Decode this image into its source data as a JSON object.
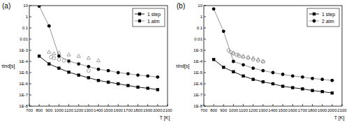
{
  "chart_data": [
    {
      "type": "scatter",
      "title": "(a)",
      "x_label": "T [K]",
      "y_label": "τind[s]",
      "log": "y",
      "grid": false,
      "legend": "upper-right",
      "xlim": [
        700,
        2100
      ],
      "xticks": [
        700,
        800,
        900,
        1000,
        1100,
        1200,
        1300,
        1400,
        1500,
        1600,
        1700,
        1800,
        1900,
        2000,
        2100
      ],
      "ylim": [
        1e-08,
        10
      ],
      "yticks": [
        10,
        1,
        0.1,
        0.01,
        {
          "value": 0.001,
          "label": "1E-3"
        },
        {
          "value": 0.0001,
          "label": "1E-4"
        },
        {
          "value": 1e-05,
          "label": "1E-5"
        },
        {
          "value": 1e-06,
          "label": "1E-6"
        },
        {
          "value": 1e-07,
          "label": "1E-7"
        },
        {
          "value": 1e-08,
          "label": "1E-8"
        }
      ],
      "series": [
        {
          "name": "1 step",
          "color": "#000000",
          "marker": "square",
          "line_style": "solid",
          "x": [
            800,
            900,
            1000,
            1100,
            1200,
            1300,
            1400,
            1500,
            1600,
            1700,
            1800,
            1900,
            2000
          ],
          "values": [
            0.0003,
            6e-05,
            2.5e-05,
            1.1e-05,
            6e-06,
            3.5e-06,
            2e-06,
            1.4e-06,
            1e-06,
            7e-07,
            5e-07,
            4e-07,
            3e-07
          ]
        },
        {
          "name": "1 atm",
          "color": "#888888",
          "marker": "circle",
          "line_style": "solid",
          "x": [
            800,
            900,
            1000,
            1100,
            1200,
            1300,
            1400,
            1500,
            1600,
            1700,
            1800,
            1900,
            2000
          ],
          "values": [
            9,
            0.15,
            0.0003,
            0.00011,
            6e-05,
            3.5e-05,
            2e-05,
            1.5e-05,
            1e-05,
            8e-06,
            6e-06,
            5e-06,
            4e-06
          ]
        },
        {
          "color": "#888888",
          "marker": "open-triangle",
          "line_style": "none",
          "x": [
            900,
            950,
            1000,
            1100,
            1200,
            1300,
            1400
          ],
          "values": [
            0.0007,
            0.0005,
            0.0006,
            0.0004,
            0.0003,
            0.0002,
            0.00012
          ]
        },
        {
          "color": "#888888",
          "marker": "open-circle",
          "line_style": "none",
          "x": [
            920,
            950,
            1000,
            1050,
            1100,
            1200,
            1300
          ],
          "values": [
            0.00025,
            0.0002,
            0.00015,
            0.00012,
            0.0001,
            6e-05,
            1.5e-05
          ]
        }
      ]
    },
    {
      "type": "scatter",
      "title": "(b)",
      "x_label": "T [K]",
      "y_label": "τind[s]",
      "log": "y",
      "grid": false,
      "legend": "upper-right",
      "xlim": [
        700,
        2100
      ],
      "xticks": [
        700,
        800,
        900,
        1000,
        1100,
        1200,
        1300,
        1400,
        1500,
        1600,
        1700,
        1800,
        1900,
        2000,
        2100
      ],
      "ylim": [
        1e-08,
        10
      ],
      "yticks": [
        10,
        1,
        0.1,
        0.01,
        {
          "value": 0.001,
          "label": "1E-3"
        },
        {
          "value": 0.0001,
          "label": "1E-4"
        },
        {
          "value": 1e-05,
          "label": "1E-5"
        },
        {
          "value": 1e-06,
          "label": "1E-6"
        },
        {
          "value": 1e-07,
          "label": "1E-7"
        },
        {
          "value": 1e-08,
          "label": "1E-8"
        }
      ],
      "series": [
        {
          "name": "1 step",
          "color": "#000000",
          "marker": "square",
          "line_style": "solid",
          "x": [
            800,
            900,
            1000,
            1100,
            1200,
            1300,
            1400,
            1500,
            1600,
            1700,
            1800,
            1900,
            2000
          ],
          "values": [
            0.00015,
            3e-05,
            1.2e-05,
            5e-06,
            2.5e-06,
            1.5e-06,
            1e-06,
            6e-07,
            4.5e-07,
            3.5e-07,
            2.5e-07,
            2e-07,
            1.5e-07
          ]
        },
        {
          "name": "2 atm",
          "color": "#888888",
          "marker": "circle",
          "line_style": "solid",
          "x": [
            800,
            900,
            1000,
            1100,
            1200,
            1300,
            1400,
            1500,
            1600,
            1700,
            1800,
            1900,
            2000
          ],
          "values": [
            5,
            0.05,
            0.0001,
            5e-05,
            2.5e-05,
            1.5e-05,
            1e-05,
            7e-06,
            5e-06,
            4e-06,
            3e-06,
            2.5e-06,
            2e-06
          ]
        },
        {
          "color": "#888888",
          "marker": "open-triangle",
          "line_style": "none",
          "x": [
            1000,
            1050,
            1100,
            1150,
            1200,
            1250,
            1300
          ],
          "values": [
            0.0006,
            0.0004,
            0.0003,
            0.00025,
            0.0002,
            0.00015,
            0.0001
          ]
        },
        {
          "color": "#888888",
          "marker": "open-circle",
          "line_style": "none",
          "x": [
            950,
            970,
            1000,
            1030,
            1060,
            1100,
            1150,
            1200,
            1250,
            1300
          ],
          "values": [
            0.001,
            0.0007,
            0.0005,
            0.0004,
            0.0003,
            0.00025,
            0.0002,
            0.00015,
            0.00012,
            0.0001
          ]
        }
      ]
    }
  ]
}
